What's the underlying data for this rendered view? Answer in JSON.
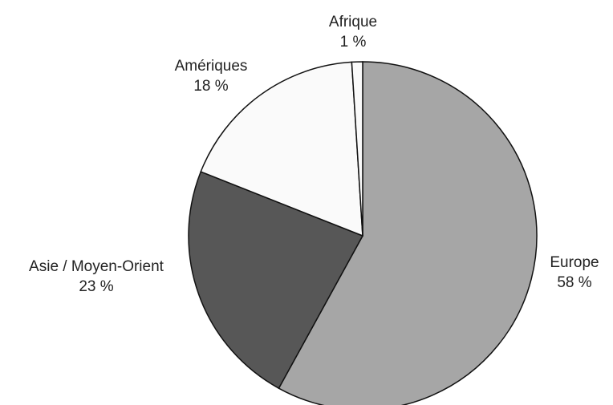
{
  "chart_data": {
    "type": "pie",
    "categories": [
      "Europe",
      "Asie / Moyen-Orient",
      "Amériques",
      "Afrique"
    ],
    "values": [
      58,
      23,
      18,
      1
    ],
    "value_labels": [
      "58 %",
      "23 %",
      "18 %",
      "1 %"
    ],
    "colors": [
      "#a6a6a6",
      "#575757",
      "#fafafa",
      "#fafafa"
    ]
  }
}
